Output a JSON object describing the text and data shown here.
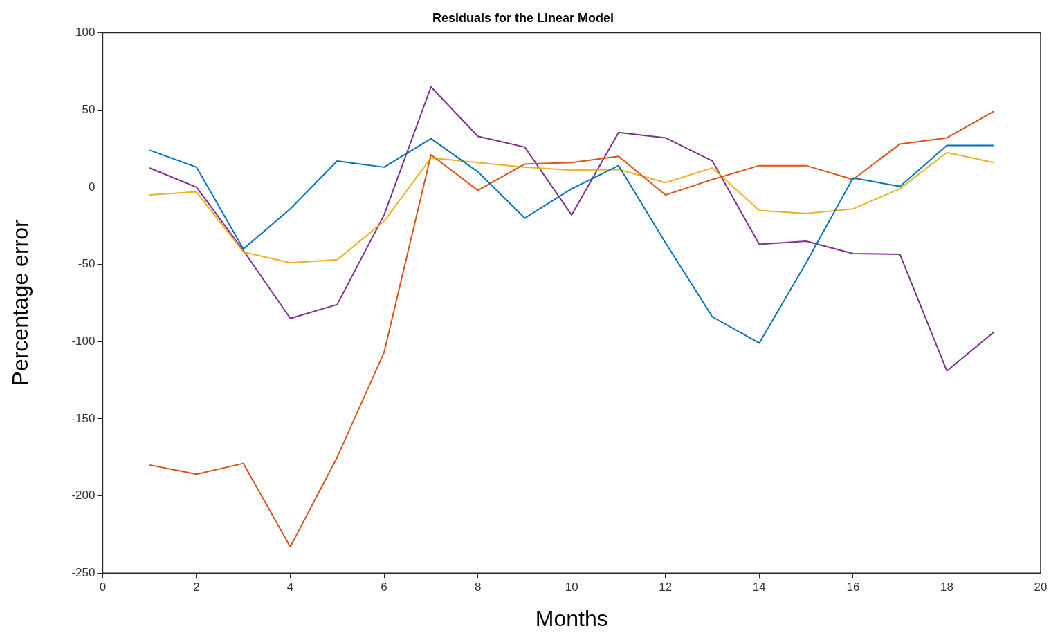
{
  "chart_data": {
    "type": "line",
    "title": "Residuals for the Linear Model",
    "xlabel": "Months",
    "ylabel": "Percentage error",
    "x": [
      1,
      2,
      3,
      4,
      5,
      6,
      7,
      8,
      9,
      10,
      11,
      12,
      13,
      14,
      15,
      16,
      17,
      18,
      19
    ],
    "series": [
      {
        "color": "#0072bd",
        "values": [
          24,
          13,
          -40,
          -14,
          17,
          13,
          31.5,
          10,
          -20,
          -1,
          14,
          -36,
          -84,
          -101,
          -49,
          6,
          0.5,
          27,
          27
        ]
      },
      {
        "color": "#d95319",
        "values": [
          -180,
          -186,
          -179,
          -233,
          -175,
          -107,
          21,
          -2,
          15,
          16,
          20,
          -5,
          5,
          14,
          14,
          5,
          28,
          32,
          49
        ]
      },
      {
        "color": "#edb120",
        "values": [
          -5,
          -3,
          -42,
          -49,
          -47,
          -22,
          19,
          16,
          13,
          11,
          11.5,
          3,
          12.5,
          -15,
          -17,
          -14,
          -1,
          22.5,
          16
        ]
      },
      {
        "color": "#7e2f8e",
        "values": [
          12.5,
          0,
          -41,
          -85,
          -76,
          -18,
          65,
          33,
          26,
          -18,
          35.5,
          32,
          17,
          -37,
          -35,
          -43,
          -43.5,
          -119,
          -94
        ]
      }
    ],
    "xlim": [
      0,
      20
    ],
    "xticks": [
      0,
      2,
      4,
      6,
      8,
      10,
      12,
      14,
      16,
      18,
      20
    ],
    "ylim": [
      -250,
      100
    ],
    "yticks": [
      -250,
      -200,
      -150,
      -100,
      -50,
      0,
      50,
      100
    ],
    "grid": false,
    "legend": false,
    "marker": "none",
    "line_style": "solid"
  }
}
